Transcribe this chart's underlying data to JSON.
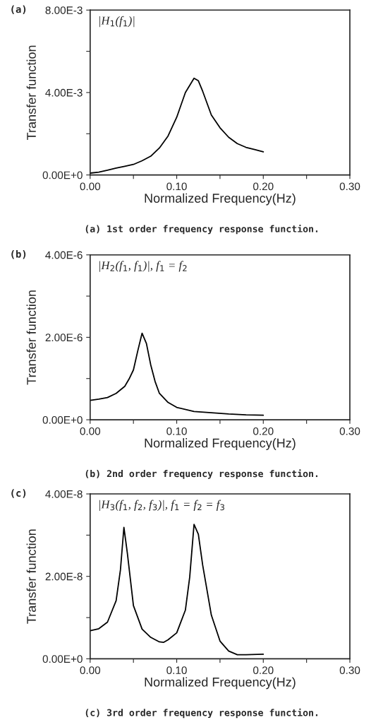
{
  "chart_data": [
    {
      "type": "line",
      "title": "(a)",
      "xlabel": "Normalized Frequency(Hz)",
      "ylabel": "Transfer function",
      "annotations": [
        "|H$_{1}$(f$_{1}$)|",
        "(a) 1st order frequency response function."
      ],
      "x": [
        0,
        0.01,
        0.02,
        0.03,
        0.04,
        0.05,
        0.06,
        0.07,
        0.08,
        0.09,
        0.1,
        0.11,
        0.12,
        0.125,
        0.13,
        0.14,
        0.15,
        0.16,
        0.17,
        0.18,
        0.19,
        0.2
      ],
      "series": [
        {
          "color": "#000000",
          "values": [
            9e-05,
            0.00014,
            0.00023,
            0.00033,
            0.00042,
            0.00051,
            0.00069,
            0.00091,
            0.00131,
            0.00189,
            0.0028,
            0.004,
            0.00469,
            0.00457,
            0.00406,
            0.00291,
            0.00229,
            0.00183,
            0.00152,
            0.00134,
            0.00123,
            0.00112
          ]
        }
      ],
      "xlim": [
        0,
        0.3
      ],
      "ylim": [
        0,
        0.008
      ],
      "xticks": [
        {
          "value": 0,
          "label": "0.00"
        },
        {
          "value": 0.05,
          "label": null
        },
        {
          "value": 0.1,
          "label": "0.10"
        },
        {
          "value": 0.15,
          "label": null
        },
        {
          "value": 0.2,
          "label": "0.20"
        },
        {
          "value": 0.25,
          "label": null
        },
        {
          "value": 0.3,
          "label": "0.30"
        }
      ],
      "yticks": [
        {
          "value": 0,
          "label": "0.00E+0"
        },
        {
          "value": 0.002,
          "label": null
        },
        {
          "value": 0.004,
          "label": "4.00E-3"
        },
        {
          "value": 0.006,
          "label": null
        },
        {
          "value": 0.008,
          "label": "8.00E-3"
        }
      ],
      "grid": false,
      "legend": false,
      "marker": "none",
      "line_style": "solid"
    },
    {
      "type": "line",
      "title": "(b)",
      "xlabel": "Normalized Frequency(Hz)",
      "ylabel": "Transfer function",
      "annotations": [
        "|H$_{2}$(f$_{1}$, f$_{1}$)|, f$_{1}$ = f$_{2}$",
        "(b) 2nd order frequency response function."
      ],
      "x": [
        0,
        0.01,
        0.02,
        0.03,
        0.04,
        0.045,
        0.05,
        0.055,
        0.06,
        0.065,
        0.07,
        0.075,
        0.08,
        0.09,
        0.1,
        0.12,
        0.14,
        0.16,
        0.18,
        0.2
      ],
      "series": [
        {
          "color": "#000000",
          "values": [
            4.7e-07,
            5e-07,
            5.4e-07,
            6.4e-07,
            8.1e-07,
            9.9e-07,
            1.21e-06,
            1.67e-06,
            2.1e-06,
            1.85e-06,
            1.33e-06,
            9.3e-07,
            6.4e-07,
            4.2e-07,
            3e-07,
            2e-07,
            1.7e-07,
            1.4e-07,
            1.2e-07,
            1.1e-07
          ]
        }
      ],
      "xlim": [
        0,
        0.3
      ],
      "ylim": [
        0,
        4e-06
      ],
      "xticks": [
        {
          "value": 0,
          "label": "0.00"
        },
        {
          "value": 0.05,
          "label": null
        },
        {
          "value": 0.1,
          "label": "0.10"
        },
        {
          "value": 0.15,
          "label": null
        },
        {
          "value": 0.2,
          "label": "0.20"
        },
        {
          "value": 0.25,
          "label": null
        },
        {
          "value": 0.3,
          "label": "0.30"
        }
      ],
      "yticks": [
        {
          "value": 0,
          "label": "0.00E+0"
        },
        {
          "value": 1e-06,
          "label": null
        },
        {
          "value": 2e-06,
          "label": "2.00E-6"
        },
        {
          "value": 3e-06,
          "label": null
        },
        {
          "value": 4e-06,
          "label": "4.00E-6"
        }
      ],
      "grid": false,
      "legend": false,
      "marker": "none",
      "line_style": "solid"
    },
    {
      "type": "line",
      "title": "(c)",
      "xlabel": "Normalized Frequency(Hz)",
      "ylabel": "Transfer function",
      "annotations": [
        "|H$_{3}$(f$_{1}$, f$_{2}$, f$_{3}$)|, f$_{1}$ = f$_{2}$ = f$_{3}$",
        "(c) 3rd order frequency response function."
      ],
      "x": [
        0,
        0.01,
        0.02,
        0.03,
        0.035,
        0.039,
        0.043,
        0.05,
        0.06,
        0.07,
        0.08,
        0.085,
        0.09,
        0.1,
        0.11,
        0.115,
        0.12,
        0.125,
        0.13,
        0.14,
        0.15,
        0.16,
        0.17,
        0.18,
        0.2
      ],
      "series": [
        {
          "color": "#000000",
          "values": [
            6.8e-09,
            7.3e-09,
            8.9e-09,
            1.41e-08,
            2.16e-08,
            3.19e-08,
            2.56e-08,
            1.29e-08,
            7.2e-09,
            5.2e-09,
            4.1e-09,
            4e-09,
            4.6e-09,
            6.3e-09,
            1.18e-08,
            1.98e-08,
            3.26e-08,
            3.02e-08,
            2.27e-08,
            1.06e-08,
            4.3e-09,
            1.9e-09,
            1e-09,
            1e-09,
            1.1e-09
          ]
        }
      ],
      "xlim": [
        0,
        0.3
      ],
      "ylim": [
        0,
        4e-08
      ],
      "xticks": [
        {
          "value": 0,
          "label": "0.00"
        },
        {
          "value": 0.05,
          "label": null
        },
        {
          "value": 0.1,
          "label": "0.10"
        },
        {
          "value": 0.15,
          "label": null
        },
        {
          "value": 0.2,
          "label": "0.20"
        },
        {
          "value": 0.25,
          "label": null
        },
        {
          "value": 0.3,
          "label": "0.30"
        }
      ],
      "yticks": [
        {
          "value": 0,
          "label": "0.00E+0"
        },
        {
          "value": 1e-08,
          "label": null
        },
        {
          "value": 2e-08,
          "label": "2.00E-8"
        },
        {
          "value": 3e-08,
          "label": null
        },
        {
          "value": 4e-08,
          "label": "4.00E-8"
        }
      ],
      "grid": false,
      "legend": false,
      "marker": "none",
      "line_style": "solid"
    }
  ]
}
